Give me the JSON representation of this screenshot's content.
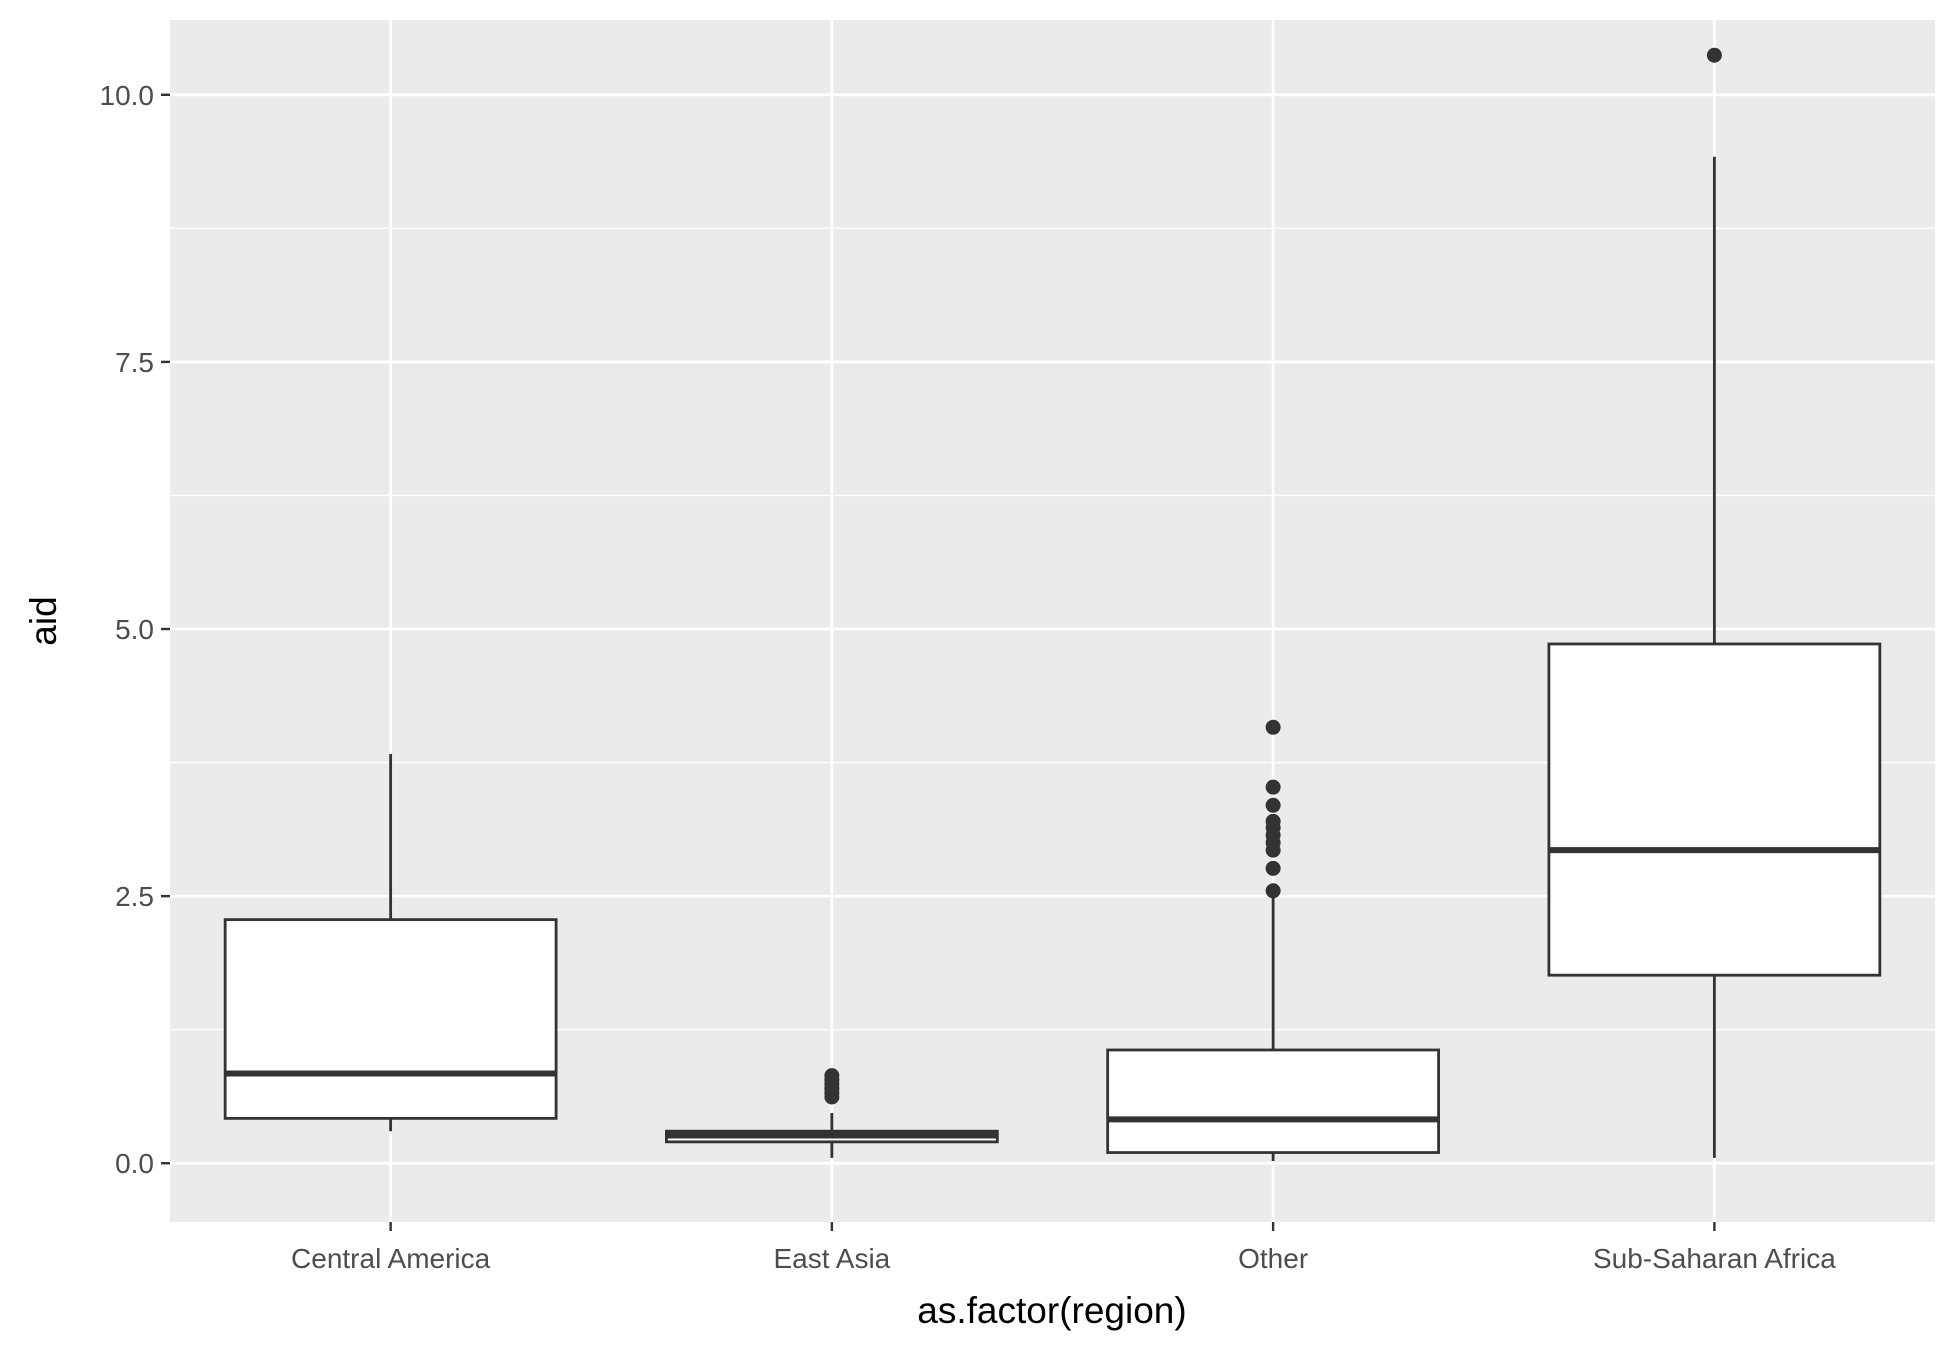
{
  "chart_data": {
    "type": "boxplot",
    "xlabel": "as.factor(region)",
    "ylabel": "aid",
    "ylim": [
      -0.55,
      10.7
    ],
    "yticks": [
      0.0,
      2.5,
      5.0,
      7.5,
      10.0
    ],
    "ytick_labels": [
      "0.0",
      "2.5",
      "5.0",
      "7.5",
      "10.0"
    ],
    "grid": true,
    "legend": "none",
    "colors": {
      "panel": "#ebebeb",
      "grid": "#ffffff",
      "box_fill": "#ffffff",
      "box_stroke": "#333333"
    },
    "categories": [
      "Central America",
      "East Asia",
      "Other",
      "Sub-Saharan Africa"
    ],
    "boxes": [
      {
        "category": "Central America",
        "lower_whisker": 0.3,
        "q1": 0.42,
        "median": 0.84,
        "q3": 2.28,
        "upper_whisker": 3.83,
        "outliers": []
      },
      {
        "category": "East Asia",
        "lower_whisker": 0.05,
        "q1": 0.2,
        "median": 0.26,
        "q3": 0.3,
        "upper_whisker": 0.47,
        "outliers": [
          0.62,
          0.66,
          0.7,
          0.74,
          0.78,
          0.82
        ]
      },
      {
        "category": "Other",
        "lower_whisker": 0.02,
        "q1": 0.1,
        "median": 0.41,
        "q3": 1.06,
        "upper_whisker": 2.5,
        "outliers": [
          2.55,
          2.76,
          2.93,
          3.0,
          3.07,
          3.14,
          3.2,
          3.35,
          3.52,
          4.08
        ]
      },
      {
        "category": "Sub-Saharan Africa",
        "lower_whisker": 0.05,
        "q1": 1.76,
        "median": 2.93,
        "q3": 4.86,
        "upper_whisker": 9.42,
        "outliers": [
          10.37
        ]
      }
    ]
  }
}
